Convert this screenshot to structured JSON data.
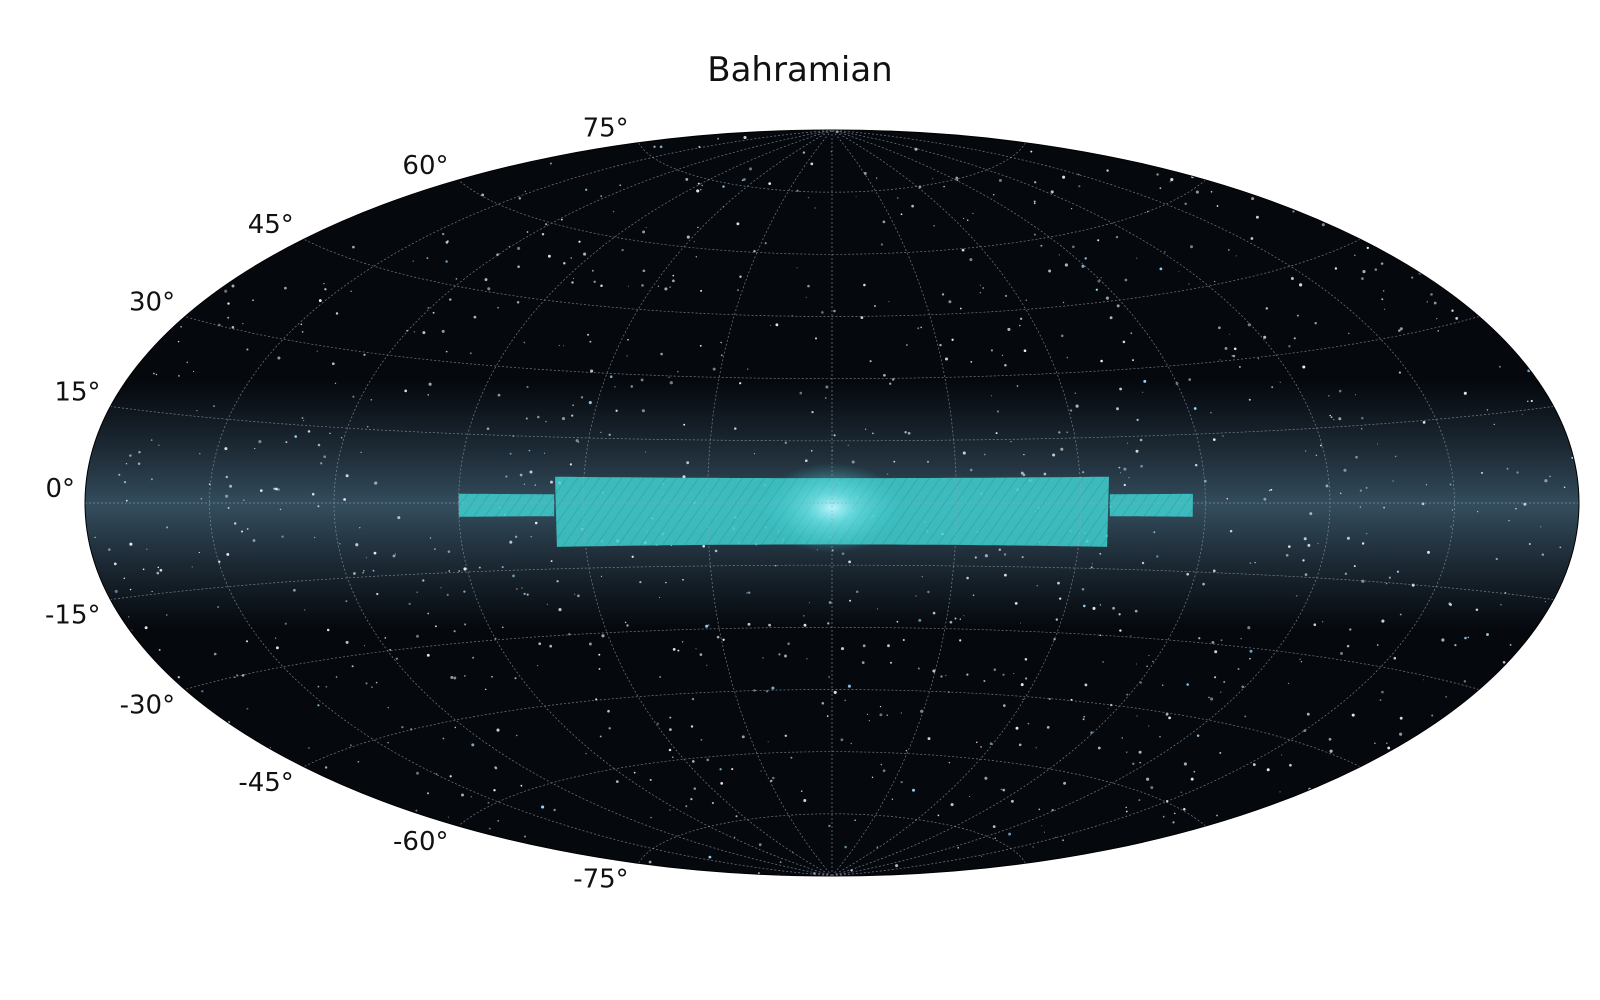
{
  "title": "Bahramian",
  "map": {
    "projection": "aitoff",
    "coordinate_frame": "galactic",
    "background": "all-sky stellar map with Milky Way band",
    "graticule": {
      "lat_step_deg": 15,
      "lon_step_deg": 30,
      "color": "#9aa3ad"
    },
    "latitude_labels": [
      {
        "deg": 75,
        "text": "75°"
      },
      {
        "deg": 60,
        "text": "60°"
      },
      {
        "deg": 45,
        "text": "45°"
      },
      {
        "deg": 30,
        "text": "30°"
      },
      {
        "deg": 15,
        "text": "15°"
      },
      {
        "deg": 0,
        "text": "0°"
      },
      {
        "deg": -15,
        "text": "-15°"
      },
      {
        "deg": -30,
        "text": "-30°"
      },
      {
        "deg": -45,
        "text": "-45°"
      },
      {
        "deg": -60,
        "text": "-60°"
      },
      {
        "deg": -75,
        "text": "-75°"
      }
    ],
    "survey_footprint": {
      "color": "#3fd0d0",
      "regions": [
        {
          "name": "central",
          "l_range_deg": [
            -67,
            67
          ],
          "b_range_deg": [
            -10,
            6
          ]
        },
        {
          "name": "west-extension",
          "l_range_deg": [
            67,
            90
          ],
          "b_range_deg": [
            -3,
            2
          ]
        },
        {
          "name": "east-extension",
          "l_range_deg": [
            -87,
            -67
          ],
          "b_range_deg": [
            -3,
            2
          ]
        }
      ]
    }
  }
}
